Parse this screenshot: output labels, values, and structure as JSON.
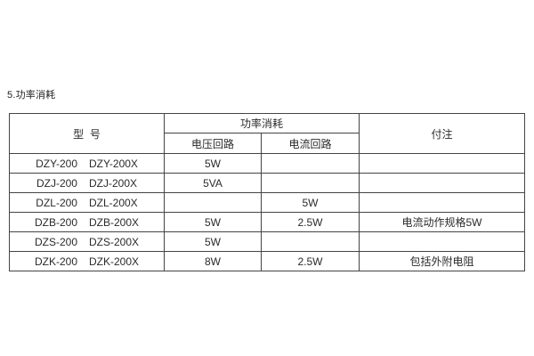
{
  "page": {
    "section_title": "5.功率消耗"
  },
  "colors": {
    "background": "#ffffff",
    "border": "#444444",
    "text": "#2a2a2a"
  },
  "table": {
    "headers": {
      "model": "型  号",
      "power_group": "功率消耗",
      "voltage_circuit": "电压回路",
      "current_circuit": "电流回路",
      "notes": "付注"
    },
    "rows": [
      {
        "model_a": "DZY-200",
        "model_b": "DZY-200X",
        "voltage": "5W",
        "current": "",
        "note": ""
      },
      {
        "model_a": "DZJ-200",
        "model_b": "DZJ-200X",
        "voltage": "5VA",
        "current": "",
        "note": ""
      },
      {
        "model_a": "DZL-200",
        "model_b": "DZL-200X",
        "voltage": "",
        "current": "5W",
        "note": ""
      },
      {
        "model_a": "DZB-200",
        "model_b": "DZB-200X",
        "voltage": "5W",
        "current": "2.5W",
        "note": "电流动作规格5W"
      },
      {
        "model_a": "DZS-200",
        "model_b": "DZS-200X",
        "voltage": "5W",
        "current": "",
        "note": ""
      },
      {
        "model_a": "DZK-200",
        "model_b": "DZK-200X",
        "voltage": "8W",
        "current": "2.5W",
        "note": "包括外附电阻"
      }
    ]
  }
}
